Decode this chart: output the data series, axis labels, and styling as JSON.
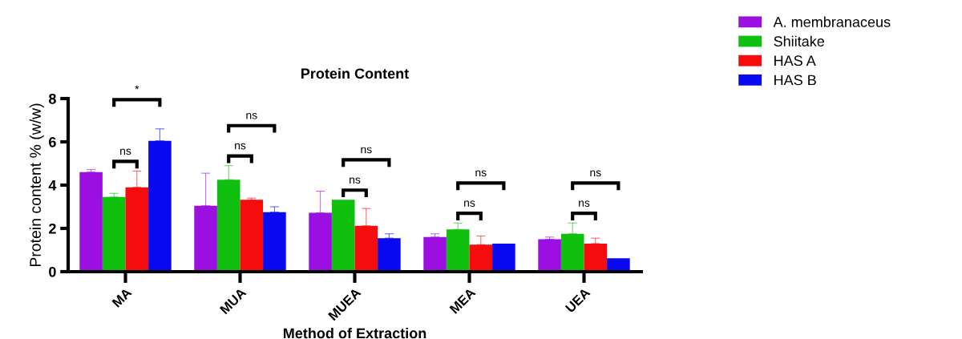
{
  "chart_data": {
    "type": "bar",
    "title": "Protein Content",
    "xlabel": "Method of Extraction",
    "ylabel": "Protein content % (w/w)",
    "categories": [
      "MA",
      "MUA",
      "MUEA",
      "MEA",
      "UEA"
    ],
    "series": [
      {
        "name": "A. membranaceus",
        "color": "#9b0fe0",
        "values": [
          4.6,
          3.05,
          2.72,
          1.6,
          1.5
        ],
        "errors": [
          [
            4.6,
            4.72
          ],
          [
            3.05,
            4.55
          ],
          [
            2.72,
            3.72
          ],
          [
            1.6,
            1.75
          ],
          [
            1.5,
            1.6
          ]
        ]
      },
      {
        "name": "Shiitake",
        "color": "#0fc00f",
        "values": [
          3.45,
          4.25,
          3.32,
          1.95,
          1.75
        ],
        "errors": [
          [
            3.45,
            3.62
          ],
          [
            4.25,
            4.9
          ],
          null,
          [
            1.95,
            2.25
          ],
          [
            1.75,
            2.25
          ]
        ]
      },
      {
        "name": "HAS A",
        "color": "#f50d0d",
        "values": [
          3.9,
          3.32,
          2.12,
          1.25,
          1.3
        ],
        "errors": [
          [
            3.9,
            4.65
          ],
          [
            3.32,
            3.4
          ],
          [
            2.12,
            2.92
          ],
          [
            1.25,
            1.65
          ],
          [
            1.3,
            1.55
          ]
        ]
      },
      {
        "name": "HAS B",
        "color": "#0a0af0",
        "values": [
          6.05,
          2.75,
          1.55,
          1.3,
          0.62
        ],
        "errors": [
          [
            6.05,
            6.6
          ],
          [
            2.75,
            3.0
          ],
          [
            1.55,
            1.75
          ],
          null,
          null
        ]
      }
    ],
    "annotations": [
      "ns",
      "*",
      "ns",
      "ns",
      "ns",
      "ns",
      "ns",
      "ns",
      "ns",
      "ns"
    ],
    "ylim": [
      0,
      8
    ],
    "yticks": [
      0,
      2,
      4,
      6,
      8
    ],
    "grid": false,
    "legend": "top right"
  }
}
